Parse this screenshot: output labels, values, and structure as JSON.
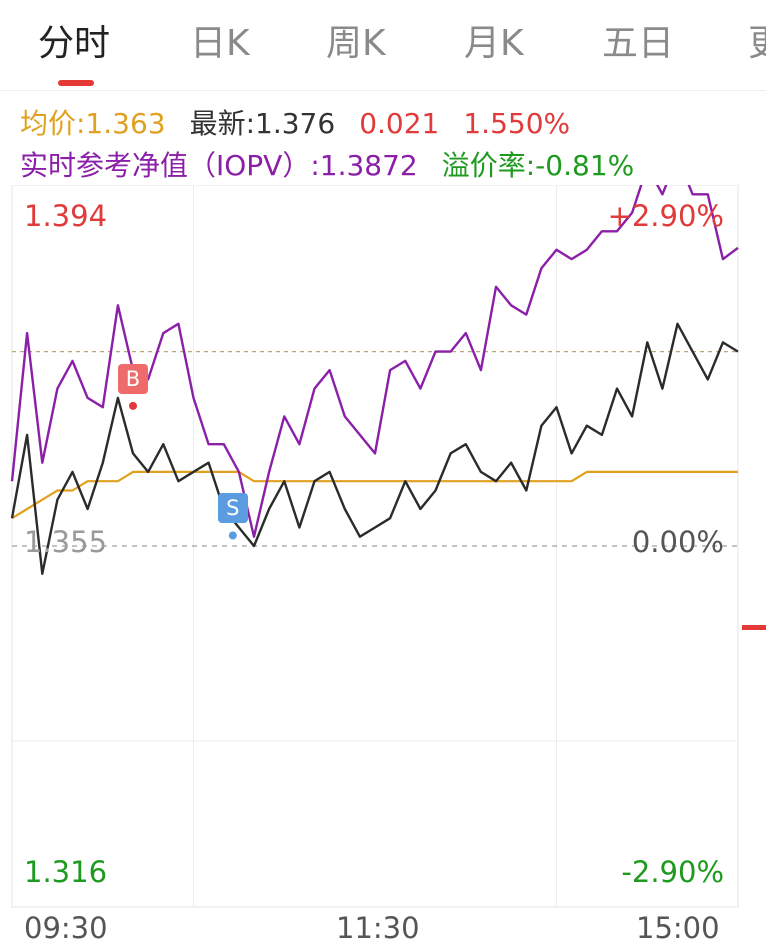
{
  "tabs": [
    "分时",
    "日K",
    "周K",
    "月K",
    "五日",
    "更"
  ],
  "info": {
    "avg_label": "均价:1.363",
    "latest_label": "最新:1.376",
    "change": "0.021",
    "change_pct": "1.550%",
    "iopv_label": "实时参考净值（IOPV）:1.3872",
    "premium_label": "溢价率:-0.81%"
  },
  "colors": {
    "up": "#e03a3a",
    "down": "#1e9a1e",
    "price_line": "#2b2b2b",
    "iopv_line": "#8b1fa8",
    "avg_line": "#e0a020",
    "buy_marker": "#ef6b6b",
    "sell_marker": "#5b9be0"
  },
  "chart_data": {
    "type": "line",
    "ylim": [
      1.316,
      1.394
    ],
    "y_tick_labels": {
      "top": "1.394",
      "mid": "1.355",
      "bottom": "1.316"
    },
    "pct_labels": {
      "top": "+2.90%",
      "mid": "0.00%",
      "bottom": "-2.90%"
    },
    "x_tick_labels": [
      "09:30",
      "11:30",
      "15:00"
    ],
    "prev_close": 1.355,
    "reference_level": 1.376,
    "x": [
      0,
      5,
      10,
      15,
      20,
      25,
      30,
      35,
      40,
      45,
      50,
      55,
      60,
      65,
      70,
      75,
      80,
      85,
      90,
      95,
      100,
      105,
      110,
      115,
      120,
      125,
      130,
      135,
      140,
      145,
      150,
      155,
      160,
      165,
      170,
      175,
      180,
      185,
      190,
      195,
      200,
      205,
      210,
      215,
      220,
      225,
      230,
      235,
      240
    ],
    "series": [
      {
        "name": "最新",
        "values": [
          1.358,
          1.367,
          1.352,
          1.36,
          1.363,
          1.359,
          1.364,
          1.371,
          1.365,
          1.363,
          1.366,
          1.362,
          1.363,
          1.364,
          1.359,
          1.357,
          1.355,
          1.359,
          1.362,
          1.357,
          1.362,
          1.363,
          1.359,
          1.356,
          1.357,
          1.358,
          1.362,
          1.359,
          1.361,
          1.365,
          1.366,
          1.363,
          1.362,
          1.364,
          1.361,
          1.368,
          1.37,
          1.365,
          1.368,
          1.367,
          1.372,
          1.369,
          1.377,
          1.372,
          1.379,
          1.376,
          1.373,
          1.377,
          1.376
        ]
      },
      {
        "name": "实时参考净值（IOPV）",
        "values": [
          1.362,
          1.378,
          1.364,
          1.372,
          1.375,
          1.371,
          1.37,
          1.381,
          1.374,
          1.373,
          1.378,
          1.379,
          1.371,
          1.366,
          1.366,
          1.363,
          1.356,
          1.363,
          1.369,
          1.366,
          1.372,
          1.374,
          1.369,
          1.367,
          1.365,
          1.374,
          1.375,
          1.372,
          1.376,
          1.376,
          1.378,
          1.374,
          1.383,
          1.381,
          1.38,
          1.385,
          1.387,
          1.386,
          1.387,
          1.389,
          1.389,
          1.391,
          1.396,
          1.393,
          1.397,
          1.393,
          1.393,
          1.386,
          1.3872
        ]
      },
      {
        "name": "均价",
        "values": [
          1.358,
          1.359,
          1.36,
          1.361,
          1.361,
          1.362,
          1.362,
          1.362,
          1.363,
          1.363,
          1.363,
          1.363,
          1.363,
          1.363,
          1.363,
          1.363,
          1.362,
          1.362,
          1.362,
          1.362,
          1.362,
          1.362,
          1.362,
          1.362,
          1.362,
          1.362,
          1.362,
          1.362,
          1.362,
          1.362,
          1.362,
          1.362,
          1.362,
          1.362,
          1.362,
          1.362,
          1.362,
          1.362,
          1.363,
          1.363,
          1.363,
          1.363,
          1.363,
          1.363,
          1.363,
          1.363,
          1.363,
          1.363,
          1.363
        ]
      }
    ],
    "markers": [
      {
        "label": "B",
        "x": 40,
        "y": 1.371
      },
      {
        "label": "S",
        "x": 73,
        "y": 1.357
      }
    ]
  }
}
